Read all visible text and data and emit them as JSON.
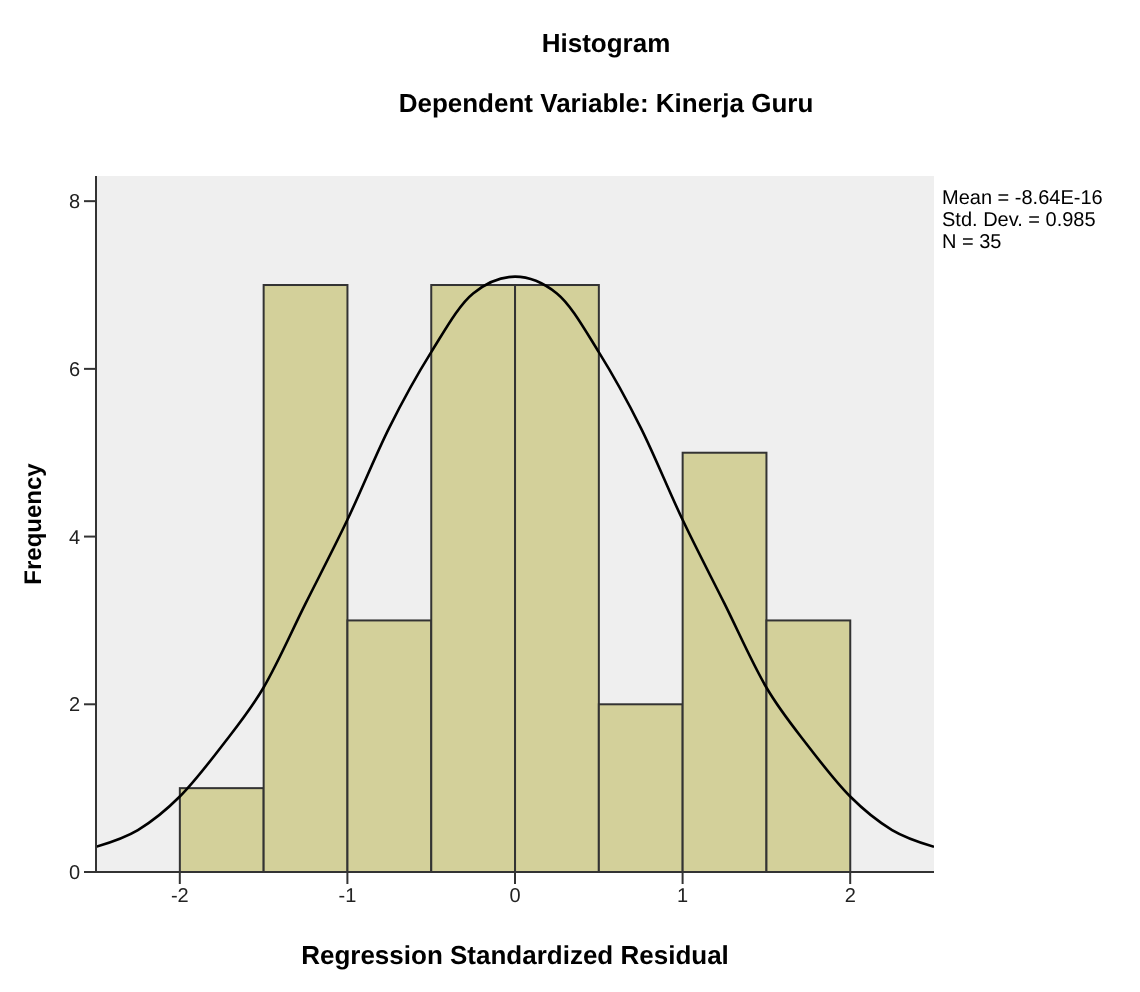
{
  "chart_data": {
    "type": "histogram",
    "title": "Histogram",
    "subtitle": "Dependent Variable: Kinerja Guru",
    "xlabel": "Regression Standardized Residual",
    "ylabel": "Frequency",
    "bins": [
      -2,
      -1.5,
      -1,
      -0.5,
      0,
      0.5,
      1,
      1.5,
      2
    ],
    "values": [
      1,
      7,
      3,
      7,
      7,
      2,
      5,
      3
    ],
    "color": "#d3d09a",
    "series": [
      {
        "type": "line",
        "color": "#000000",
        "x": [
          -2.5,
          -2.25,
          -2,
          -1.75,
          -1.5,
          -1.25,
          -1,
          -0.75,
          -0.5,
          -0.25,
          0,
          0.25,
          0.5,
          0.75,
          1,
          1.25,
          1.5,
          1.75,
          2,
          2.25,
          2.5
        ],
        "values": [
          0.3,
          0.5,
          0.9,
          1.5,
          2.2,
          3.2,
          4.2,
          5.3,
          6.2,
          6.9,
          7.1,
          6.9,
          6.2,
          5.3,
          4.2,
          3.2,
          2.2,
          1.5,
          0.9,
          0.5,
          0.3
        ]
      }
    ],
    "xlim": [
      -2.5,
      2.5
    ],
    "ylim": [
      0,
      8.3
    ],
    "xticks": [
      -2,
      -1,
      0,
      1,
      2
    ],
    "yticks": [
      0,
      2,
      4,
      6,
      8
    ],
    "grid": false,
    "legend": false,
    "marker": "none",
    "line_style": "solid",
    "annotations": [
      "Mean = -8.64E-16",
      "Std. Dev. = 0.985",
      "N = 35"
    ]
  }
}
